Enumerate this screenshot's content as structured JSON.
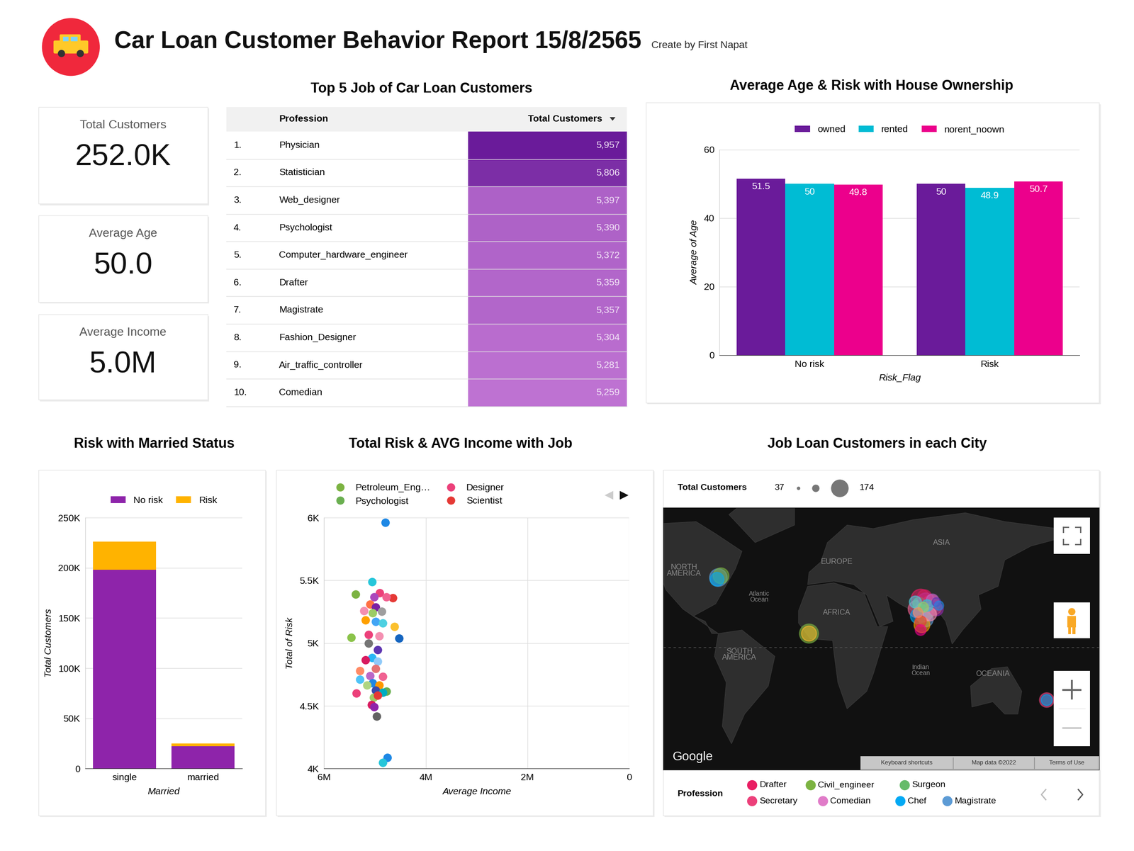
{
  "header": {
    "title": "Car Loan Customer Behavior Report 15/8/2565",
    "subtitle": "Create by First Napat"
  },
  "kpis": [
    {
      "label": "Total Customers",
      "value": "252.0K"
    },
    {
      "label": "Average Age",
      "value": "50.0"
    },
    {
      "label": "Average Income",
      "value": "5.0M"
    }
  ],
  "table": {
    "title": "Top 5 Job of Car Loan Customers",
    "columns": [
      "Profession",
      "Total Customers"
    ],
    "rows": [
      {
        "rank": "1.",
        "profession": "Physician",
        "total": 5957,
        "total_label": "5,957"
      },
      {
        "rank": "2.",
        "profession": "Statistician",
        "total": 5806,
        "total_label": "5,806"
      },
      {
        "rank": "3.",
        "profession": "Web_designer",
        "total": 5397,
        "total_label": "5,397"
      },
      {
        "rank": "4.",
        "profession": "Psychologist",
        "total": 5390,
        "total_label": "5,390"
      },
      {
        "rank": "5.",
        "profession": "Computer_hardware_engineer",
        "total": 5372,
        "total_label": "5,372"
      },
      {
        "rank": "6.",
        "profession": "Drafter",
        "total": 5359,
        "total_label": "5,359"
      },
      {
        "rank": "7.",
        "profession": "Magistrate",
        "total": 5357,
        "total_label": "5,357"
      },
      {
        "rank": "8.",
        "profession": "Fashion_Designer",
        "total": 5304,
        "total_label": "5,304"
      },
      {
        "rank": "9.",
        "profession": "Air_traffic_controller",
        "total": 5281,
        "total_label": "5,281"
      },
      {
        "rank": "10.",
        "profession": "Comedian",
        "total": 5259,
        "total_label": "5,259"
      }
    ]
  },
  "chart_data": [
    {
      "type": "bar",
      "title": "Average Age & Risk with House Ownership",
      "categories": [
        "No risk",
        "Risk"
      ],
      "series": [
        {
          "name": "owned",
          "color": "#6A1B9A",
          "values": [
            51.5,
            50
          ]
        },
        {
          "name": "rented",
          "color": "#00BCD4",
          "values": [
            50,
            48.9
          ]
        },
        {
          "name": "norent_noown",
          "color": "#EC008C",
          "values": [
            49.8,
            50.7
          ]
        }
      ],
      "xlabel": "Risk_Flag",
      "ylabel": "Average of Age",
      "ylim": [
        0,
        60
      ],
      "yticks": [
        0,
        20,
        40,
        60
      ],
      "grid": true,
      "legend": "upper center",
      "data_labels": true
    },
    {
      "type": "bar",
      "stacked": true,
      "title": "Risk with Married Status",
      "categories": [
        "single",
        "married"
      ],
      "series": [
        {
          "name": "No risk",
          "color": "#8E24AA",
          "values": [
            198000,
            22300
          ]
        },
        {
          "name": "Risk",
          "color": "#FFB300",
          "values": [
            28100,
            2900
          ]
        }
      ],
      "xlabel": "Married",
      "ylabel": "Total Customers",
      "ylim": [
        0,
        250000
      ],
      "yticks": [
        0,
        {
          "value": 50000,
          "label": "50K"
        },
        {
          "value": 100000,
          "label": "100K"
        },
        {
          "value": 150000,
          "label": "150K"
        },
        {
          "value": 200000,
          "label": "200K"
        },
        {
          "value": 250000,
          "label": "250K"
        }
      ],
      "grid": true,
      "legend": "upper center"
    },
    {
      "type": "scatter",
      "title": "Total Risk & AVG Income with Job",
      "series": [
        {
          "name": "Petroleum_Eng…",
          "color": "#7CB342",
          "x": [
            5380000
          ],
          "y": [
            5389
          ]
        },
        {
          "name": "Psychologist",
          "color": "#6AAF50",
          "x": [
            4770000
          ],
          "y": [
            4617
          ]
        },
        {
          "name": "Designer",
          "color": "#EC407A",
          "x": [
            4910000
          ],
          "y": [
            5401
          ]
        },
        {
          "name": "Scientist",
          "color": "#E53935",
          "x": [
            4650000
          ],
          "y": [
            5360
          ]
        },
        {
          "x": [
            4790000,
            5050000,
            5010000,
            4770000,
            5090000,
            4980000,
            5210000,
            4860000,
            5040000,
            5180000,
            4980000,
            4610000,
            4840000,
            5460000,
            4520000,
            5120000,
            4910000,
            5120000,
            4940000,
            5050000,
            4940000,
            5180000,
            5290000,
            4980000,
            5090000,
            4840000,
            5290000,
            5040000,
            5150000,
            4910000,
            4980000,
            4840000,
            5360000,
            5020000,
            4940000,
            5060000,
            5010000,
            4960000,
            4750000,
            4840000
          ],
          "y": [
            5960,
            5487,
            5366,
            5366,
            5308,
            5285,
            5256,
            5251,
            5239,
            5182,
            5170,
            5130,
            5158,
            5043,
            5037,
            5066,
            5055,
            4997,
            4945,
            4882,
            4853,
            4864,
            4778,
            4795,
            4738,
            4732,
            4709,
            4680,
            4663,
            4663,
            4622,
            4605,
            4599,
            4565,
            4582,
            4507,
            4490,
            4415,
            4086,
            4046
          ],
          "colors": [
            "#1E88E5",
            "#26C6DA",
            "#AB47BC",
            "#F06292",
            "#FF7043",
            "#7B1FA2",
            "#F48FB1",
            "#9E9E9E",
            "#9CCC65",
            "#FFA000",
            "#42A5F5",
            "#FBC02D",
            "#4DD0E1",
            "#8BC34A",
            "#1565C0",
            "#EC407A",
            "#F48FB1",
            "#757575",
            "#5E35B1",
            "#29B6F6",
            "#90CAF9",
            "#D81B60",
            "#FF8A65",
            "#E57373",
            "#BA68C8",
            "#F06292",
            "#4FC3F7",
            "#1E88E5",
            "#AED581",
            "#FF9800",
            "#3949AB",
            "#00ACC1",
            "#EC407A",
            "#9CCC65",
            "#E53935",
            "#D81B60",
            "#8E24AA",
            "#616161",
            "#1E88E5",
            "#26C6DA"
          ]
        }
      ],
      "xlabel": "Average Income",
      "ylabel": "Total of Risk",
      "xlim": [
        6000000,
        0
      ],
      "xticks": [
        {
          "value": 6000000,
          "label": "6M"
        },
        {
          "value": 4000000,
          "label": "4M"
        },
        {
          "value": 2000000,
          "label": "2M"
        },
        0
      ],
      "ylim": [
        4000,
        6000
      ],
      "yticks": [
        {
          "value": 4000,
          "label": "4K"
        },
        {
          "value": 4500,
          "label": "4.5K"
        },
        {
          "value": 5000,
          "label": "5K"
        },
        {
          "value": 5500,
          "label": "5.5K"
        },
        {
          "value": 6000,
          "label": "6K"
        }
      ],
      "grid": true,
      "legend": "upper left",
      "marker": "o"
    }
  ],
  "map": {
    "type": "map",
    "title": "Job Loan Customers in each City",
    "size_legend": {
      "title": "Total Customers",
      "min": 37,
      "max": 174
    },
    "legend_title": "Profession",
    "professions": [
      {
        "name": "Drafter",
        "color": "#E91E63"
      },
      {
        "name": "Civil_engineer",
        "color": "#7CB342"
      },
      {
        "name": "Surgeon",
        "color": "#66BB6A"
      },
      {
        "name": "Secretary",
        "color": "#EC407A"
      },
      {
        "name": "Comedian",
        "color": "#E07BC8"
      },
      {
        "name": "Chef",
        "color": "#03A9F4"
      },
      {
        "name": "Magistrate",
        "color": "#5C9BD5"
      }
    ],
    "bubbles": {
      "lon": [
        -78,
        -76,
        -79,
        -9,
        -9,
        172,
        172,
        76,
        80,
        84,
        73,
        78,
        82,
        86,
        74,
        80,
        77,
        88,
        75,
        79,
        72,
        83,
        76,
        85,
        81,
        78,
        74,
        88,
        76,
        90
      ],
      "lat": [
        40,
        41,
        39,
        8,
        8,
        -30,
        -30,
        28,
        26,
        25,
        22,
        20,
        22,
        23,
        18,
        16,
        13,
        22,
        25,
        29,
        26,
        19,
        15,
        27,
        24,
        23,
        20,
        26,
        10,
        24
      ],
      "size": [
        150,
        120,
        90,
        174,
        110,
        100,
        60,
        170,
        160,
        150,
        140,
        174,
        130,
        120,
        110,
        100,
        120,
        90,
        80,
        95,
        70,
        85,
        60,
        75,
        65,
        50,
        45,
        37,
        55,
        40
      ],
      "colors": [
        "#5C9BD5",
        "#7CB342",
        "#03A9F4",
        "#7CB342",
        "#FBC02D",
        "#EC407A",
        "#03A9F4",
        "#E91E63",
        "#AB47BC",
        "#EC407A",
        "#F06292",
        "#E07BC8",
        "#7CB342",
        "#FF7043",
        "#03A9F4",
        "#5C9BD5",
        "#FFA000",
        "#8E24AA",
        "#66BB6A",
        "#D81B60",
        "#4DD0E1",
        "#F48FB1",
        "#E53935",
        "#BA68C8",
        "#26C6DA",
        "#9CCC65",
        "#FF8A65",
        "#5E35B1",
        "#EC008C",
        "#1E88E5"
      ]
    },
    "xlim": [
      -120,
      212
    ],
    "ylim": [
      -70,
      80
    ],
    "tick_labels": false,
    "place_labels": [
      "NORTH\nAMERICA",
      "EUROPE",
      "ASIA",
      "AFRICA",
      "Atlantic\nOcean",
      "SOUTH\nAMERICA",
      "Indian\nOcean",
      "OCEANIA"
    ],
    "attribution": {
      "logo": "Google",
      "links": [
        "Keyboard shortcuts",
        "Map data ©2022",
        "Terms of Use"
      ]
    }
  }
}
